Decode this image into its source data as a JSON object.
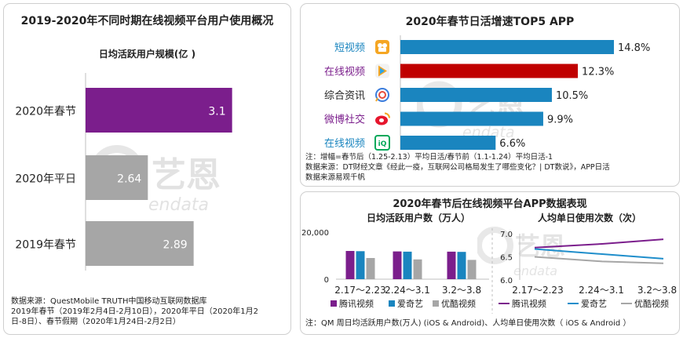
{
  "left_panel": {
    "title": "2019-2020年不同时期在线视频平台用户使用概况",
    "subtitle": "日均活跃用户规模(亿 )",
    "source_lines": [
      "数据来源：QuestMobile TRUTH中国移动互联网数据库",
      "2019年春节（2019年2月4日-2月10日），2020年平日（2020年1月2",
      "日-8日）、春节假期（2020年1月24日-2月2日）"
    ]
  },
  "top_right_panel": {
    "title": "2020年春节日活增速TOP5 APP",
    "note_lines": [
      "注：增幅=春节后（1.25-2.13）平均日活/春节前（1.1-1.24）平均日活-1",
      "数据来源：DT财经文章《经此一疫，互联网公司格局发生了哪些变化？| DT数说》，APP日活",
      "数据来源易观千帆"
    ]
  },
  "bottom_right_panel": {
    "title": "2020年春节后在线视频平台APP数据表现",
    "note": "注：QM 周日均活跃用户数(万人) (iOS & Android)、人均单日使用次数（ iOS & Android ）"
  },
  "watermark": {
    "logo_text": "艺恩",
    "sub_text": "endata"
  },
  "colors": {
    "purple": "#7b1e8c",
    "gray": "#a6a6a6",
    "blue": "#1a85bf",
    "red": "#c00000",
    "teal": "#1f8ecb",
    "gray_dark": "#8c8c8c",
    "iqiyi_green": "#00a85a",
    "tencent_orange": "#f5a623"
  },
  "chart_data": [
    {
      "type": "bar",
      "orientation": "horizontal",
      "title": "日均活跃用户规模(亿 )",
      "categories": [
        "2020年春节",
        "2020年平日",
        "2019年春节"
      ],
      "values": [
        3.1,
        2.64,
        2.89
      ],
      "value_labels": [
        "3.1",
        "2.64",
        "2.89"
      ],
      "bar_colors": [
        "#7b1e8c",
        "#a6a6a6",
        "#a6a6a6"
      ],
      "xlim": [
        2.3,
        3.2
      ]
    },
    {
      "type": "bar",
      "orientation": "horizontal",
      "title": "2020年春节日活增速TOP5 APP",
      "categories": [
        "短视频",
        "在线视频",
        "综合资讯",
        "微博社交",
        "在线视频"
      ],
      "category_colors": [
        "#1a85bf",
        "#7b1e8c",
        "#222222",
        "#7b1e8c",
        "#1a85bf"
      ],
      "category_icons": [
        "kuaishou-icon",
        "tencent-video-icon",
        "qq-browser-icon",
        "weibo-icon",
        "iqiyi-icon"
      ],
      "values": [
        14.8,
        12.3,
        10.5,
        9.9,
        6.6
      ],
      "value_labels": [
        "14.8%",
        "12.3%",
        "10.5%",
        "9.9%",
        "6.6%"
      ],
      "bar_colors": [
        "#1a85bf",
        "#c00000",
        "#1a85bf",
        "#1a85bf",
        "#1a85bf"
      ],
      "xlim": [
        0,
        15.5
      ]
    },
    {
      "type": "bar",
      "title": "日均活跃用户数（万人）",
      "categories": [
        "2.17～2.23",
        "2.24～3.1",
        "3.2～3.8"
      ],
      "series": [
        {
          "name": "腾讯视频",
          "color": "#7b1e8c",
          "values": [
            12000,
            11800,
            11700
          ]
        },
        {
          "name": "爱奇艺",
          "color": "#1a85bf",
          "values": [
            11900,
            11700,
            11600
          ]
        },
        {
          "name": "优酷视频",
          "color": "#a6a6a6",
          "values": [
            9000,
            8400,
            8200
          ]
        }
      ],
      "y_ticks": [
        "20,000",
        "0"
      ],
      "ylim": [
        0,
        20000
      ]
    },
    {
      "type": "line",
      "title": "人均单日使用次数（次）",
      "categories": [
        "2.17～2.23",
        "2.24～3.1",
        "3.2～3.8"
      ],
      "series": [
        {
          "name": "腾讯视频",
          "color": "#7b1e8c",
          "values": [
            6.7,
            6.78,
            6.88
          ]
        },
        {
          "name": "爱奇艺",
          "color": "#1f8ecb",
          "values": [
            6.67,
            6.56,
            6.46
          ]
        },
        {
          "name": "优酷视频",
          "color": "#a6a6a6",
          "values": [
            6.5,
            6.4,
            6.36
          ]
        }
      ],
      "y_ticks": [
        "7.0",
        "6.5",
        "6.0"
      ],
      "ylim": [
        6.0,
        7.0
      ]
    }
  ]
}
